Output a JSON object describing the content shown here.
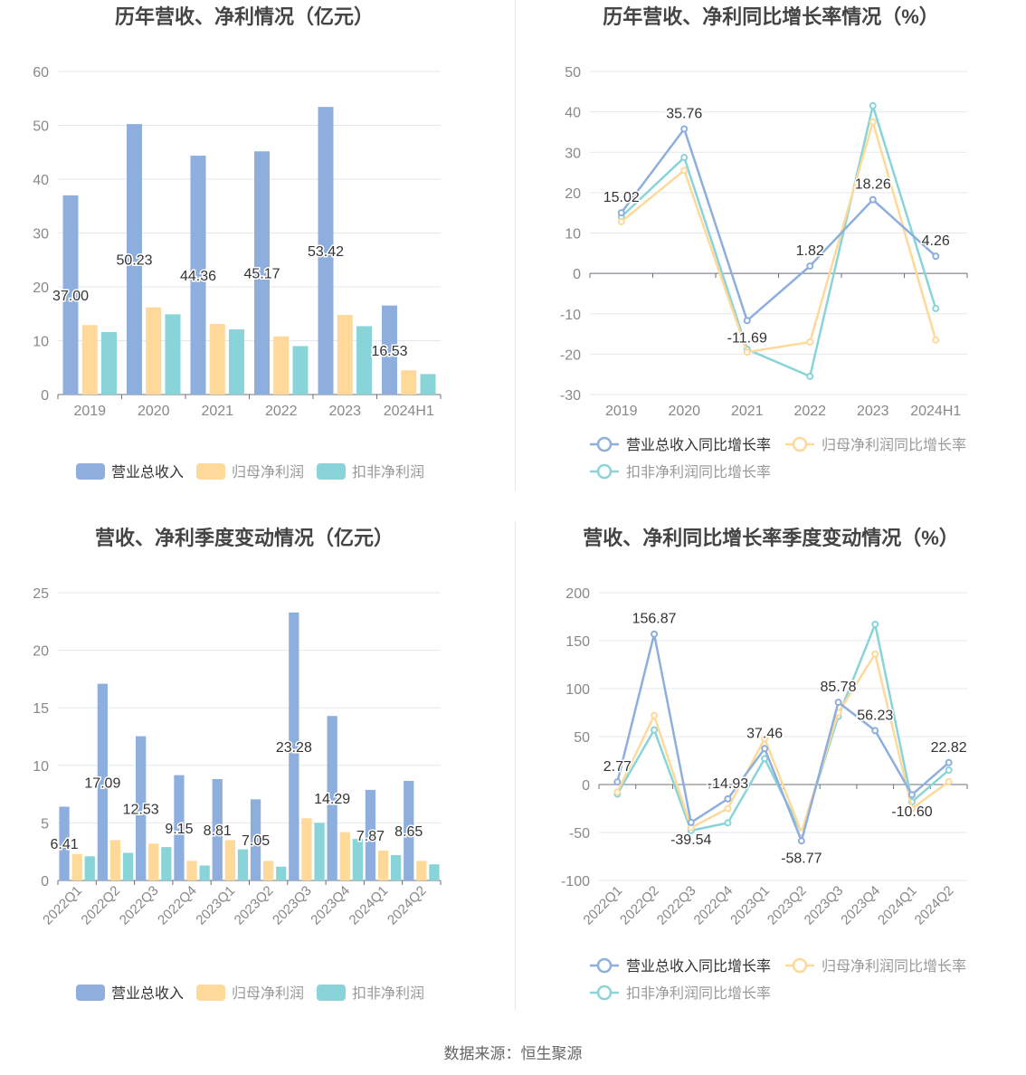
{
  "colors": {
    "revenue": "#8eafde",
    "net_profit": "#ffd999",
    "deducted_profit": "#89d4d9",
    "revenue_line": "#8eafde",
    "net_line": "#ffd999",
    "deducted_line": "#89d4d9",
    "grid": "#e4e7ee",
    "title": "#444444",
    "axis_text": "#888888"
  },
  "footer": {
    "source": "数据来源：恒生聚源"
  },
  "chart_data": [
    {
      "type": "bar",
      "title": "历年营收、净利情况（亿元）",
      "categories": [
        "2019",
        "2020",
        "2021",
        "2022",
        "2023",
        "2024H1"
      ],
      "ylim": [
        0,
        60
      ],
      "yticks": [
        0,
        10,
        20,
        30,
        40,
        50,
        60
      ],
      "rotate_labels": false,
      "legend_position": "bottom",
      "series": [
        {
          "name": "营业总收入",
          "color_key": "revenue",
          "labeled": true,
          "values": [
            37.0,
            50.23,
            44.36,
            45.17,
            53.42,
            16.53
          ],
          "labels": [
            "37.00",
            "50.23",
            "44.36",
            "45.17",
            "53.42",
            "16.53"
          ]
        },
        {
          "name": "归母净利润",
          "color_key": "net_profit",
          "labeled": false,
          "values": [
            12.9,
            16.2,
            13.1,
            10.8,
            14.8,
            4.5
          ]
        },
        {
          "name": "扣非净利润",
          "color_key": "deducted_profit",
          "labeled": false,
          "values": [
            11.6,
            14.9,
            12.1,
            9.0,
            12.7,
            3.8
          ]
        }
      ]
    },
    {
      "type": "line",
      "title": "历年营收、净利同比增长率情况（%）",
      "categories": [
        "2019",
        "2020",
        "2021",
        "2022",
        "2023",
        "2024H1"
      ],
      "ylim": [
        -30,
        50
      ],
      "yticks": [
        -30,
        -20,
        -10,
        0,
        10,
        20,
        30,
        40,
        50
      ],
      "rotate_labels": false,
      "legend_position": "bottom",
      "series": [
        {
          "name": "营业总收入同比增长率",
          "color_key": "revenue_line",
          "labeled": true,
          "values": [
            15.02,
            35.76,
            -11.69,
            1.82,
            18.26,
            4.26
          ],
          "labels": [
            "15.02",
            "35.76",
            "-11.69",
            "1.82",
            "18.26",
            "4.26"
          ]
        },
        {
          "name": "归母净利润同比增长率",
          "color_key": "net_line",
          "labeled": false,
          "values": [
            12.8,
            25.5,
            -19.5,
            -17.0,
            37.5,
            -16.5
          ]
        },
        {
          "name": "扣非净利润同比增长率",
          "color_key": "deducted_line",
          "labeled": false,
          "values": [
            14.0,
            28.7,
            -18.8,
            -25.5,
            41.5,
            -8.7
          ]
        }
      ]
    },
    {
      "type": "bar",
      "title": "营收、净利季度变动情况（亿元）",
      "categories": [
        "2022Q1",
        "2022Q2",
        "2022Q3",
        "2022Q4",
        "2023Q1",
        "2023Q2",
        "2023Q3",
        "2023Q4",
        "2024Q1",
        "2024Q2"
      ],
      "ylim": [
        0,
        25
      ],
      "yticks": [
        0,
        5,
        10,
        15,
        20,
        25
      ],
      "rotate_labels": true,
      "legend_position": "bottom",
      "series": [
        {
          "name": "营业总收入",
          "color_key": "revenue",
          "labeled": true,
          "values": [
            6.41,
            17.09,
            12.53,
            9.15,
            8.81,
            7.05,
            23.28,
            14.29,
            7.87,
            8.65
          ],
          "labels": [
            "6.41",
            "17.09",
            "12.53",
            "9.15",
            "8.81",
            "7.05",
            "23.28",
            "14.29",
            "7.87",
            "8.65"
          ]
        },
        {
          "name": "归母净利润",
          "color_key": "net_profit",
          "labeled": false,
          "values": [
            2.3,
            3.5,
            3.2,
            1.7,
            3.5,
            1.7,
            5.4,
            4.2,
            2.6,
            1.7
          ]
        },
        {
          "name": "扣非净利润",
          "color_key": "deducted_profit",
          "labeled": false,
          "values": [
            2.1,
            2.4,
            2.9,
            1.3,
            2.7,
            1.2,
            5.0,
            3.6,
            2.2,
            1.4
          ]
        }
      ]
    },
    {
      "type": "line",
      "title": "营收、净利同比增长率季度变动情况（%）",
      "categories": [
        "2022Q1",
        "2022Q2",
        "2022Q3",
        "2022Q4",
        "2023Q1",
        "2023Q2",
        "2023Q3",
        "2023Q4",
        "2024Q1",
        "2024Q2"
      ],
      "ylim": [
        -100,
        200
      ],
      "yticks": [
        -100,
        -50,
        0,
        50,
        100,
        150,
        200
      ],
      "rotate_labels": true,
      "legend_position": "bottom",
      "series": [
        {
          "name": "营业总收入同比增长率",
          "color_key": "revenue_line",
          "labeled": true,
          "values": [
            2.77,
            156.87,
            -39.54,
            -14.93,
            37.46,
            -58.77,
            85.78,
            56.23,
            -10.6,
            22.82
          ],
          "labels": [
            "2.77",
            "156.87",
            "-39.54",
            "-14.93",
            "37.46",
            "-58.77",
            "85.78",
            "56.23",
            "-10.60",
            "22.82"
          ]
        },
        {
          "name": "归母净利润同比增长率",
          "color_key": "net_line",
          "labeled": false,
          "values": [
            -8.0,
            72.0,
            -45.0,
            -25.0,
            48.0,
            -50.0,
            75.0,
            136.0,
            -25.0,
            3.0
          ]
        },
        {
          "name": "扣非净利润同比增长率",
          "color_key": "deducted_line",
          "labeled": false,
          "values": [
            -10.0,
            57.0,
            -48.0,
            -40.0,
            27.0,
            -50.0,
            71.0,
            167.0,
            -18.0,
            15.0
          ]
        }
      ]
    }
  ]
}
